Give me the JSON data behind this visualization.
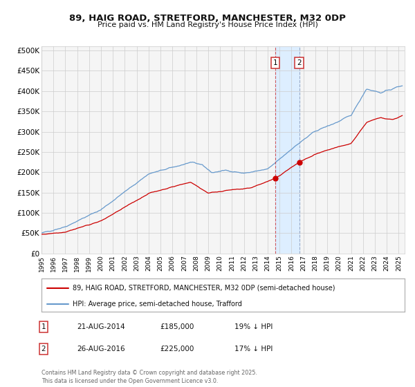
{
  "title": "89, HAIG ROAD, STRETFORD, MANCHESTER, M32 0DP",
  "subtitle": "Price paid vs. HM Land Registry's House Price Index (HPI)",
  "legend_line1": "89, HAIG ROAD, STRETFORD, MANCHESTER, M32 0DP (semi-detached house)",
  "legend_line2": "HPI: Average price, semi-detached house, Trafford",
  "sale1_label": "1",
  "sale1_date": "21-AUG-2014",
  "sale1_price": "£185,000",
  "sale1_hpi": "19% ↓ HPI",
  "sale1_x": 2014.64,
  "sale1_y": 185000,
  "sale2_label": "2",
  "sale2_date": "26-AUG-2016",
  "sale2_price": "£225,000",
  "sale2_hpi": "17% ↓ HPI",
  "sale2_x": 2016.65,
  "sale2_y": 225000,
  "vline1_x": 2014.64,
  "vline2_x": 2016.65,
  "shade_x1": 2014.64,
  "shade_x2": 2016.65,
  "xlim": [
    1995,
    2025.5
  ],
  "ylim": [
    0,
    510000
  ],
  "yticks": [
    0,
    50000,
    100000,
    150000,
    200000,
    250000,
    300000,
    350000,
    400000,
    450000,
    500000
  ],
  "ytick_labels": [
    "£0",
    "£50K",
    "£100K",
    "£150K",
    "£200K",
    "£250K",
    "£300K",
    "£350K",
    "£400K",
    "£450K",
    "£500K"
  ],
  "xticks": [
    1995,
    1996,
    1997,
    1998,
    1999,
    2000,
    2001,
    2002,
    2003,
    2004,
    2005,
    2006,
    2007,
    2008,
    2009,
    2010,
    2011,
    2012,
    2013,
    2014,
    2015,
    2016,
    2017,
    2018,
    2019,
    2020,
    2021,
    2022,
    2023,
    2024,
    2025
  ],
  "red_color": "#cc0000",
  "blue_color": "#6699cc",
  "shade_color": "#ddeeff",
  "grid_color": "#cccccc",
  "footnote": "Contains HM Land Registry data © Crown copyright and database right 2025.\nThis data is licensed under the Open Government Licence v3.0.",
  "background_color": "#ffffff",
  "plot_bg_color": "#f5f5f5"
}
